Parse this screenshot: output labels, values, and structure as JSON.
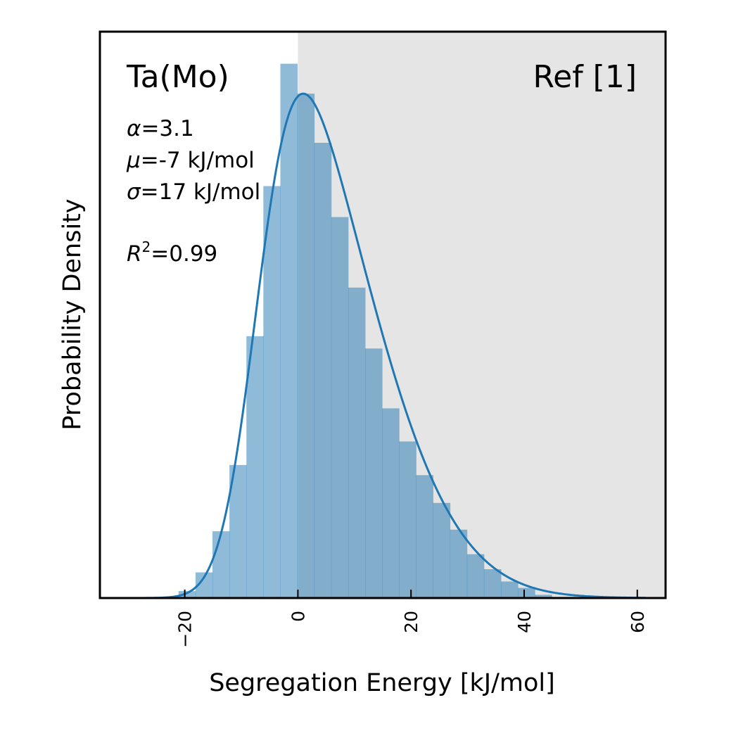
{
  "chart_data": {
    "type": "bar",
    "subtype": "histogram-with-fit",
    "xlabel": "Segregation Energy [kJ/mol]",
    "ylabel": "Probability Density",
    "xlim": [
      -35,
      65
    ],
    "ylim": [
      0,
      1.06
    ],
    "y_ticks_shown": false,
    "x_ticks": [
      -20,
      0,
      20,
      40,
      60
    ],
    "x_tick_labels": [
      "−20",
      "0",
      "20",
      "40",
      "60"
    ],
    "shaded_region": {
      "x_start": 0,
      "x_end": 65,
      "color": "#e5e5e5"
    },
    "bar_color": "#1f77b4",
    "bar_opacity": 0.5,
    "fit_color": "#1f77b4",
    "bin_width": 3.0,
    "bin_edges_start": -21.1,
    "bin_heights": [
      0.013,
      0.048,
      0.125,
      0.249,
      0.49,
      0.771,
      1.0,
      0.944,
      0.852,
      0.713,
      0.581,
      0.467,
      0.355,
      0.293,
      0.23,
      0.178,
      0.128,
      0.082,
      0.054,
      0.031,
      0.019,
      0.006
    ],
    "fit": {
      "model": "skew-normal",
      "alpha": 3.1,
      "mu": -7,
      "sigma": 17
    },
    "annotations": {
      "system": "Ta(Mo)",
      "reference": "Ref [1]",
      "alpha_sym": "α",
      "alpha_val": "=3.1",
      "mu_sym": "μ",
      "mu_val": "=-7 kJ/mol",
      "sigma_sym": "σ",
      "sigma_val": "=17 kJ/mol",
      "r2_sym": "R",
      "r2_sup": "2",
      "r2_val": "=0.99"
    }
  }
}
